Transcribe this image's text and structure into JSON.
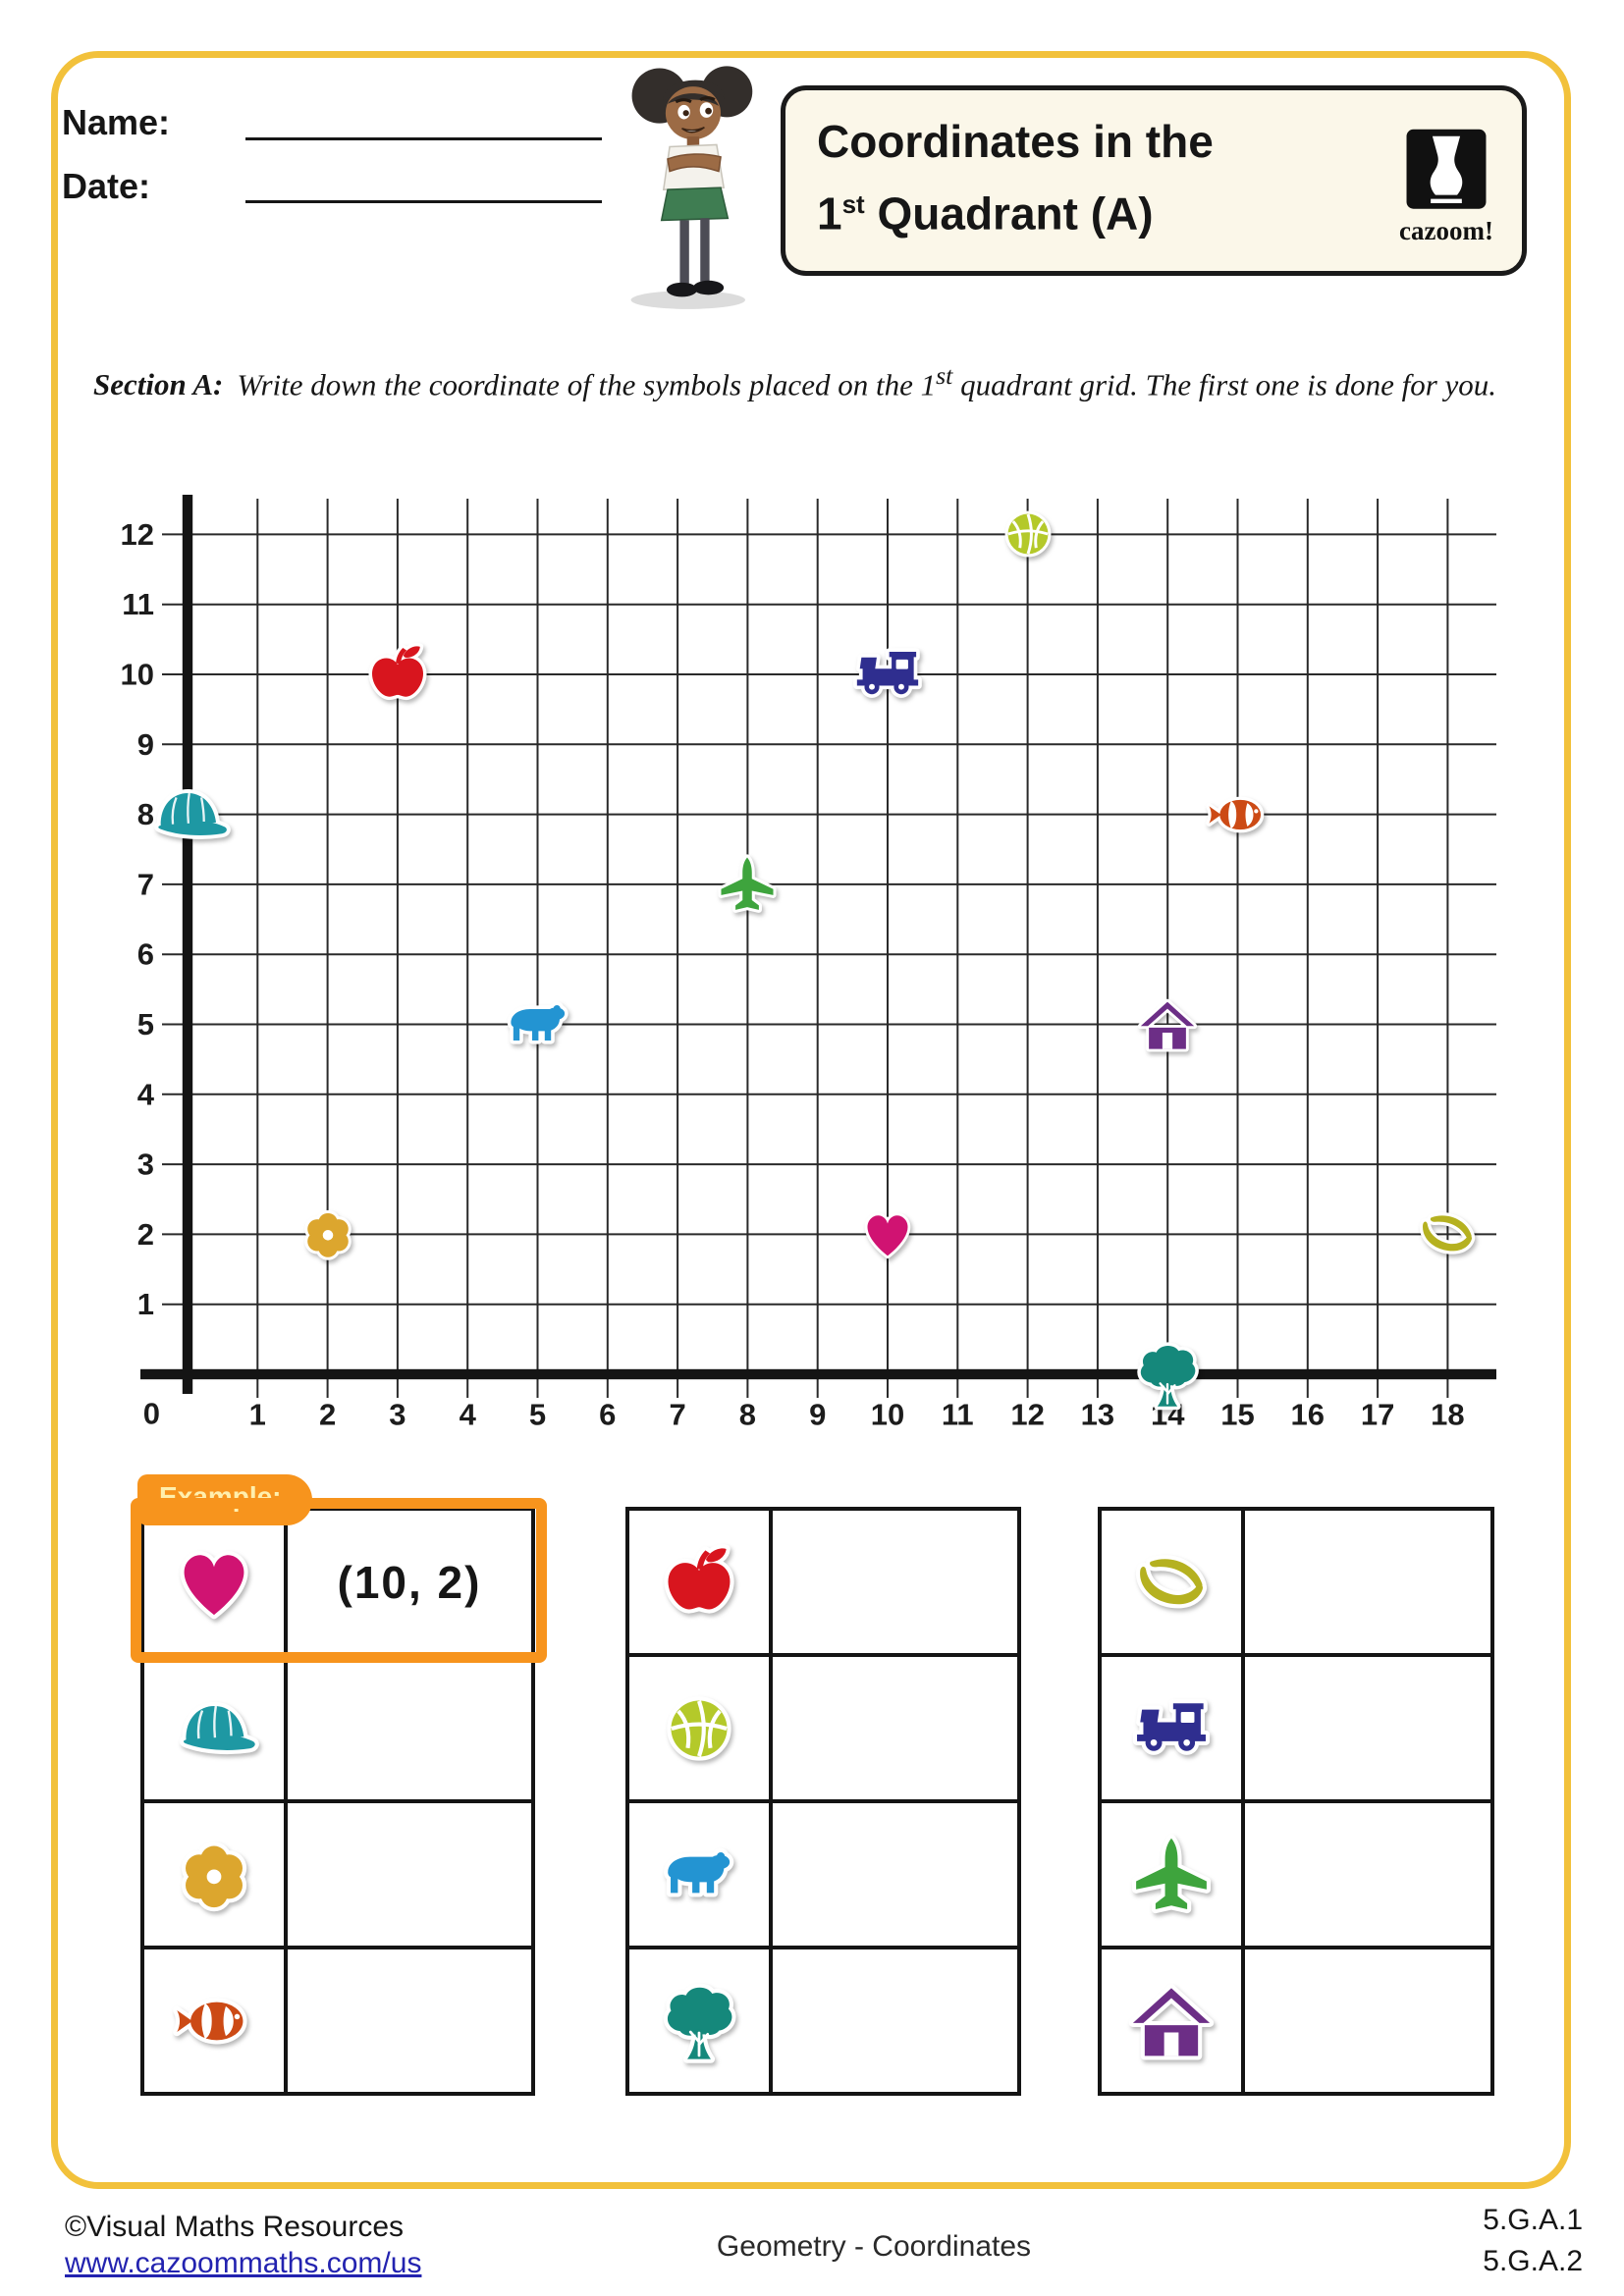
{
  "header": {
    "name_label": "Name:",
    "date_label": "Date:",
    "title_line1": "Coordinates in the",
    "title_line2_num": "1",
    "title_line2_sup": "st",
    "title_line2_rest": " Quadrant (A)",
    "logo_text": "cazoom!"
  },
  "section": {
    "label": "Section A:",
    "text_pre": "Write down the coordinate of the symbols placed on the 1",
    "text_sup": "st",
    "text_post": " quadrant grid. The first one is done for you."
  },
  "example_label": "Example:",
  "grid": {
    "x_max": 18,
    "y_max": 12,
    "origin_label": "0",
    "x_ticks": [
      1,
      2,
      3,
      4,
      5,
      6,
      7,
      8,
      9,
      10,
      11,
      12,
      13,
      14,
      15,
      16,
      17,
      18
    ],
    "y_ticks": [
      1,
      2,
      3,
      4,
      5,
      6,
      7,
      8,
      9,
      10,
      11,
      12
    ],
    "points": [
      {
        "symbol": "cap",
        "x": 0,
        "y": 8
      },
      {
        "symbol": "apple",
        "x": 3,
        "y": 10
      },
      {
        "symbol": "train",
        "x": 10,
        "y": 10
      },
      {
        "symbol": "basketball",
        "x": 12,
        "y": 12
      },
      {
        "symbol": "fish",
        "x": 15,
        "y": 8
      },
      {
        "symbol": "airplane",
        "x": 8,
        "y": 7
      },
      {
        "symbol": "bear",
        "x": 5,
        "y": 5
      },
      {
        "symbol": "house",
        "x": 14,
        "y": 5
      },
      {
        "symbol": "flower",
        "x": 2,
        "y": 2
      },
      {
        "symbol": "heart",
        "x": 10,
        "y": 2
      },
      {
        "symbol": "bananas",
        "x": 18,
        "y": 2
      },
      {
        "symbol": "tree",
        "x": 14,
        "y": 0
      }
    ]
  },
  "symbol_colors": {
    "heart": "#D01372",
    "cap": "#1E98A3",
    "flower": "#DCA62E",
    "fish": "#CC4A15",
    "apple": "#D8151E",
    "basketball": "#B4C92A",
    "bear": "#2394D2",
    "tree": "#15887B",
    "bananas": "#B5B120",
    "train": "#2F2E8F",
    "airplane": "#3EA43D",
    "house": "#6C2E86"
  },
  "tables": [
    {
      "rows": [
        {
          "symbol": "heart",
          "answer": "(10, 2)",
          "example": true
        },
        {
          "symbol": "cap",
          "answer": ""
        },
        {
          "symbol": "flower",
          "answer": ""
        },
        {
          "symbol": "fish",
          "answer": ""
        }
      ]
    },
    {
      "rows": [
        {
          "symbol": "apple",
          "answer": ""
        },
        {
          "symbol": "basketball",
          "answer": ""
        },
        {
          "symbol": "bear",
          "answer": ""
        },
        {
          "symbol": "tree",
          "answer": ""
        }
      ]
    },
    {
      "rows": [
        {
          "symbol": "bananas",
          "answer": ""
        },
        {
          "symbol": "train",
          "answer": ""
        },
        {
          "symbol": "airplane",
          "answer": ""
        },
        {
          "symbol": "house",
          "answer": ""
        }
      ]
    }
  ],
  "footer": {
    "credit": "©Visual Maths Resources",
    "url": "www.cazoommaths.com/us",
    "center": "Geometry - Coordinates",
    "standard1": "5.G.A.1",
    "standard2": "5.G.A.2"
  }
}
